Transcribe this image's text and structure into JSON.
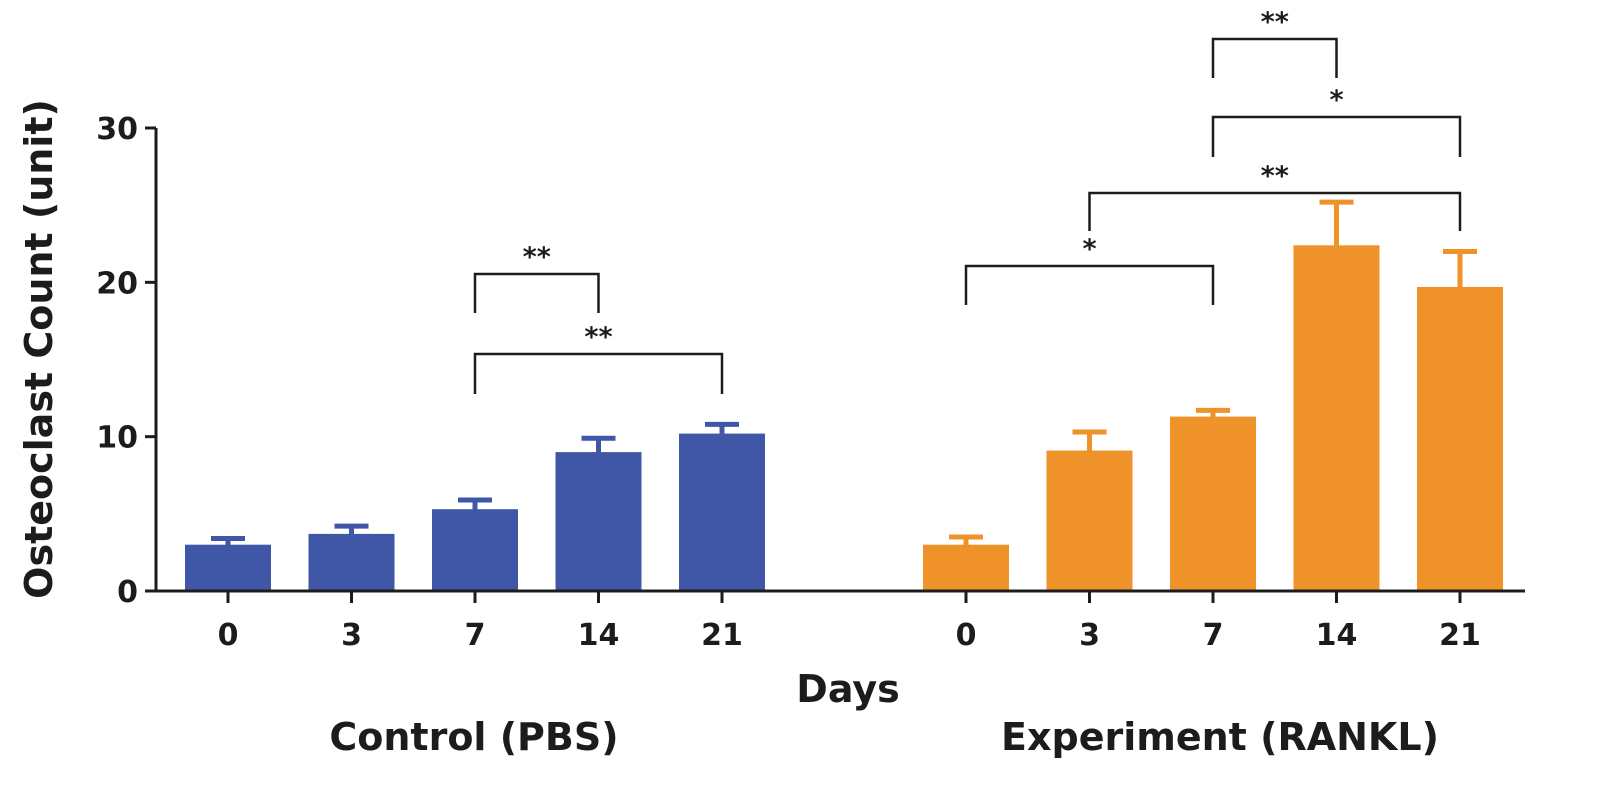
{
  "chart_data": {
    "type": "bar",
    "ylabel": "Osteoclast Count (unit)",
    "xlabel": "Days",
    "ylim": [
      0,
      30
    ],
    "yticks": [
      0,
      10,
      20,
      30
    ],
    "grid": false,
    "groups": [
      {
        "name": "Control (PBS)",
        "color": "#3f57a6",
        "categories": [
          "0",
          "3",
          "7",
          "14",
          "21"
        ],
        "values": [
          3.0,
          3.7,
          5.3,
          9.0,
          10.2
        ],
        "errors": [
          0.4,
          0.5,
          0.6,
          0.9,
          0.6
        ],
        "significance": [
          {
            "from": 2,
            "to": 3,
            "label": "**"
          },
          {
            "from": 2,
            "to": 4,
            "label": "**"
          }
        ]
      },
      {
        "name": "Experiment (RANKL)",
        "color": "#f0922a",
        "categories": [
          "0",
          "3",
          "7",
          "14",
          "21"
        ],
        "values": [
          3.0,
          9.1,
          11.3,
          22.4,
          19.7
        ],
        "errors": [
          0.5,
          1.2,
          0.4,
          2.8,
          2.3
        ],
        "significance": [
          {
            "from": 2,
            "to": 3,
            "label": "**"
          },
          {
            "from": 2,
            "to": 4,
            "label": "*"
          },
          {
            "from": 1,
            "to": 4,
            "label": "**"
          },
          {
            "from": 0,
            "to": 2,
            "label": "*"
          }
        ]
      }
    ]
  }
}
